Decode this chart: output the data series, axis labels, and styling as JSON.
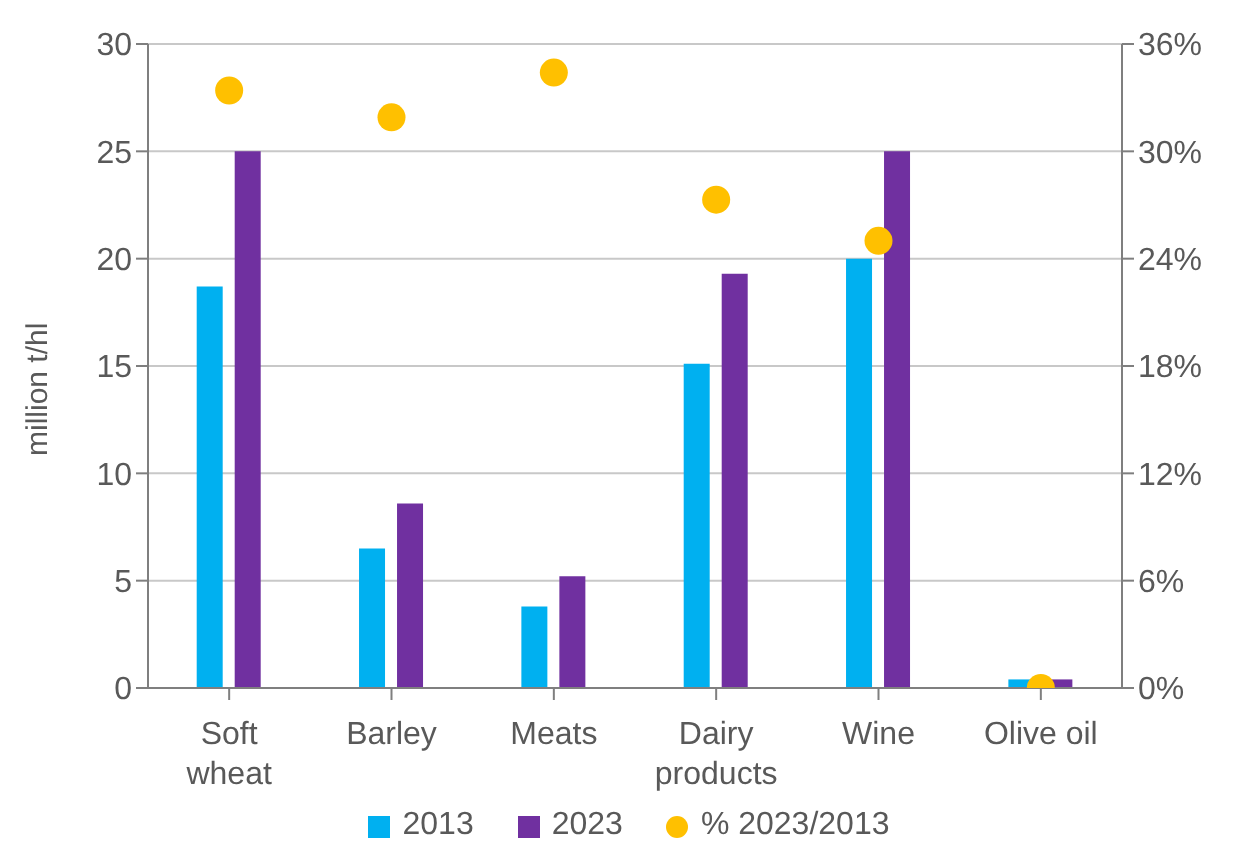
{
  "chart_data": {
    "type": "bar",
    "ylabel": "million t/hl",
    "categories": [
      "Soft wheat",
      "Barley",
      "Meats",
      "Dairy products",
      "Wine",
      "Olive oil"
    ],
    "series": [
      {
        "name": "2013",
        "color": "#00b0f0",
        "values": [
          18.7,
          6.5,
          3.8,
          15.1,
          20.0,
          0.4
        ]
      },
      {
        "name": "2023",
        "color": "#7030a0",
        "values": [
          25.0,
          8.6,
          5.2,
          19.3,
          25.0,
          0.4
        ]
      },
      {
        "name": "% 2023/2013",
        "type": "scatter",
        "axis": "y2",
        "color": "#ffc000",
        "values": [
          33.4,
          31.9,
          34.4,
          27.3,
          25.0,
          0.0
        ]
      }
    ],
    "ylim": [
      0,
      30
    ],
    "yticks": [
      0,
      5,
      10,
      15,
      20,
      25,
      30
    ],
    "y2lim": [
      0,
      36
    ],
    "y2ticks": [
      {
        "value": 0,
        "label": "0%"
      },
      {
        "value": 6,
        "label": "6%"
      },
      {
        "value": 12,
        "label": "12%"
      },
      {
        "value": 18,
        "label": "18%"
      },
      {
        "value": 24,
        "label": "24%"
      },
      {
        "value": 30,
        "label": "30%"
      },
      {
        "value": 36,
        "label": "36%"
      }
    ],
    "grid": "y",
    "legend": "bottom",
    "marker": "circle"
  }
}
